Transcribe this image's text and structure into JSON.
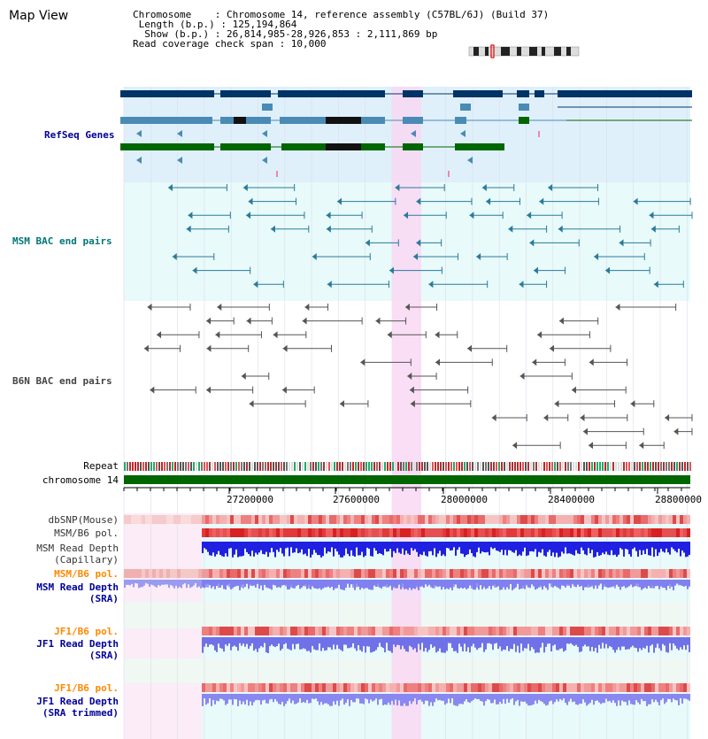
{
  "header": {
    "title": "Map View",
    "info_lines": [
      "Chromosome    : Chromosome 14, reference assembly (C57BL/6J) (Build 37)",
      " Length (b.p.) : 125,194,864",
      "  Show (b.p.) : 26,814,985-28,926,853 : 2,111,869 bp",
      "Read coverage check span : 10,000"
    ]
  },
  "tracks": {
    "refseq": "RefSeq Genes",
    "msm_bac": "MSM BAC end pairs",
    "b6n_bac": "B6N BAC end pairs",
    "repeat": "Repeat",
    "chromosome": "chromosome 14",
    "dbsnp": "dbSNP(Mouse)",
    "msm_b6_pol_1": "MSM/B6 pol.",
    "msm_depth_cap_1": "MSM Read Depth",
    "msm_depth_cap_2": "(Capillary)",
    "msm_b6_pol_2": "MSM/B6 pol.",
    "msm_depth_sra_1": "MSM Read Depth",
    "msm_depth_sra_2": "(SRA)",
    "jf1_b6_pol_1": "JF1/B6 pol.",
    "jf1_depth_sra_1": "JF1 Read Depth",
    "jf1_depth_sra_2": "(SRA)",
    "jf1_b6_pol_2": "JF1/B6 pol.",
    "jf1_depth_trim_1": "JF1 Read Depth",
    "jf1_depth_trim_2": "(SRA trimmed)"
  },
  "axis": {
    "ticks": [
      "27200000",
      "27600000",
      "28000000",
      "28400000",
      "28800000"
    ]
  },
  "colors": {
    "refseq_bg": "#dff0fa",
    "msm_bg": "#e8fafa",
    "highlight": "#f9d8f3",
    "gene_dark": "#003366",
    "gene_mid": "#4a8bb5",
    "gene_green": "#006600",
    "msm_line": "#2a7a9a",
    "b6n_line": "#555555",
    "label_blue": "#000099",
    "label_teal": "#007777",
    "label_orange": "#ff8800"
  }
}
